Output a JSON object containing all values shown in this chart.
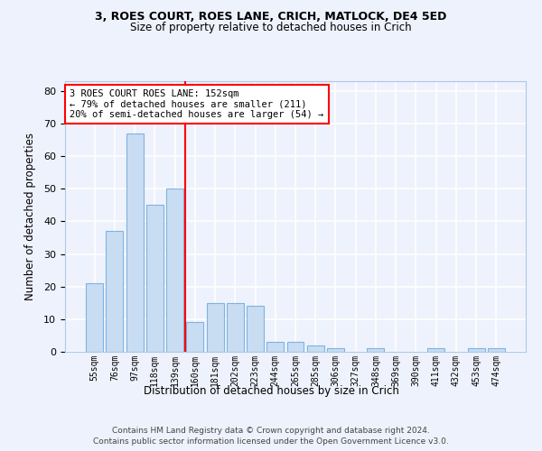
{
  "title1": "3, ROES COURT, ROES LANE, CRICH, MATLOCK, DE4 5ED",
  "title2": "Size of property relative to detached houses in Crich",
  "xlabel": "Distribution of detached houses by size in Crich",
  "ylabel": "Number of detached properties",
  "categories": [
    "55sqm",
    "76sqm",
    "97sqm",
    "118sqm",
    "139sqm",
    "160sqm",
    "181sqm",
    "202sqm",
    "223sqm",
    "244sqm",
    "265sqm",
    "285sqm",
    "306sqm",
    "327sqm",
    "348sqm",
    "369sqm",
    "390sqm",
    "411sqm",
    "432sqm",
    "453sqm",
    "474sqm"
  ],
  "values": [
    21,
    37,
    67,
    45,
    50,
    9,
    15,
    15,
    14,
    3,
    3,
    2,
    1,
    0,
    1,
    0,
    0,
    1,
    0,
    1,
    1
  ],
  "bar_color": "#c9ddf2",
  "bar_edgecolor": "#7fb3e0",
  "vline_x": 4.5,
  "vline_color": "red",
  "annotation_text": "3 ROES COURT ROES LANE: 152sqm\n← 79% of detached houses are smaller (211)\n20% of semi-detached houses are larger (54) →",
  "annotation_box_facecolor": "white",
  "annotation_box_edgecolor": "red",
  "ylim": [
    0,
    83
  ],
  "yticks": [
    0,
    10,
    20,
    30,
    40,
    50,
    60,
    70,
    80
  ],
  "footer1": "Contains HM Land Registry data © Crown copyright and database right 2024.",
  "footer2": "Contains public sector information licensed under the Open Government Licence v3.0.",
  "bg_color": "#eef2fc",
  "grid_color": "#ffffff",
  "spine_color": "#aec8e8"
}
